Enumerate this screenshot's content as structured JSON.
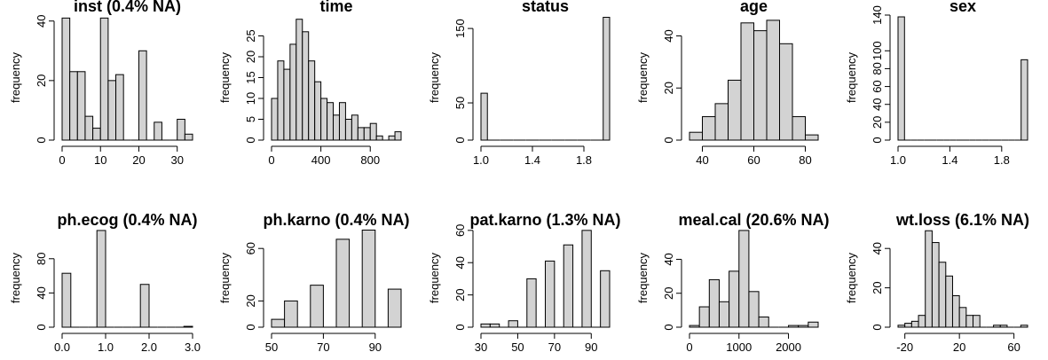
{
  "chart_data": [
    {
      "type": "bar",
      "title": "inst (0.4% NA)",
      "ylabel": "frequency",
      "bins": [
        0,
        2,
        4,
        6,
        8,
        10,
        12,
        14,
        16,
        18,
        20,
        22,
        24,
        26,
        28,
        30,
        32,
        34
      ],
      "counts": [
        41,
        23,
        23,
        8,
        4,
        41,
        20,
        22,
        0,
        0,
        30,
        0,
        6,
        0,
        0,
        7,
        2
      ],
      "xlim": [
        0,
        34
      ],
      "ylim": [
        0,
        42
      ],
      "xticks": [
        0,
        10,
        20,
        30
      ],
      "yticks": [
        0,
        20,
        40
      ]
    },
    {
      "type": "bar",
      "title": "time",
      "ylabel": "frequency",
      "bins": [
        0,
        50,
        100,
        150,
        200,
        250,
        300,
        350,
        400,
        450,
        500,
        550,
        600,
        650,
        700,
        750,
        800,
        850,
        900,
        950,
        1000,
        1050
      ],
      "counts": [
        10,
        19,
        17,
        23,
        29,
        26,
        19,
        14,
        10,
        9,
        6,
        9,
        5,
        6,
        3,
        3,
        4,
        1,
        0,
        1,
        2
      ],
      "xlim": [
        0,
        1050
      ],
      "ylim": [
        0,
        30
      ],
      "xticks": [
        0,
        400,
        800
      ],
      "yticks": [
        0,
        5,
        10,
        15,
        20,
        25
      ]
    },
    {
      "type": "bar",
      "title": "status",
      "ylabel": "frequency",
      "bins": [
        1,
        1.05,
        1.1,
        1.15,
        1.2,
        1.25,
        1.3,
        1.35,
        1.4,
        1.45,
        1.5,
        1.55,
        1.6,
        1.65,
        1.7,
        1.75,
        1.8,
        1.85,
        1.9,
        1.95,
        2
      ],
      "counts": [
        63,
        0,
        0,
        0,
        0,
        0,
        0,
        0,
        0,
        0,
        0,
        0,
        0,
        0,
        0,
        0,
        0,
        0,
        0,
        165
      ],
      "xlim": [
        1,
        2
      ],
      "ylim": [
        0,
        168
      ],
      "xticks": [
        1.0,
        1.4,
        1.8
      ],
      "yticks": [
        0,
        50,
        150
      ]
    },
    {
      "type": "bar",
      "title": "age",
      "ylabel": "frequency",
      "bins": [
        35,
        40,
        45,
        50,
        55,
        60,
        65,
        70,
        75,
        80,
        85
      ],
      "counts": [
        3,
        9,
        14,
        23,
        45,
        42,
        46,
        37,
        9,
        2
      ],
      "xlim": [
        35,
        85
      ],
      "ylim": [
        0,
        48
      ],
      "xticks": [
        40,
        60,
        80
      ],
      "yticks": [
        0,
        20,
        40
      ]
    },
    {
      "type": "bar",
      "title": "sex",
      "ylabel": "frequency",
      "bins": [
        1,
        1.05,
        1.1,
        1.15,
        1.2,
        1.25,
        1.3,
        1.35,
        1.4,
        1.45,
        1.5,
        1.55,
        1.6,
        1.65,
        1.7,
        1.75,
        1.8,
        1.85,
        1.9,
        1.95,
        2
      ],
      "counts": [
        138,
        0,
        0,
        0,
        0,
        0,
        0,
        0,
        0,
        0,
        0,
        0,
        0,
        0,
        0,
        0,
        0,
        0,
        0,
        90
      ],
      "xlim": [
        1,
        2
      ],
      "ylim": [
        0,
        140
      ],
      "xticks": [
        1.0,
        1.4,
        1.8
      ],
      "yticks": [
        0,
        20,
        40,
        60,
        80,
        100,
        140
      ]
    },
    {
      "type": "bar",
      "title": "ph.ecog (0.4% NA)",
      "ylabel": "frequency",
      "bins": [
        0,
        0.2,
        0.4,
        0.6,
        0.8,
        1.0,
        1.2,
        1.4,
        1.6,
        1.8,
        2.0,
        2.2,
        2.4,
        2.6,
        2.8,
        3.0
      ],
      "counts": [
        63,
        0,
        0,
        0,
        113,
        0,
        0,
        0,
        0,
        50,
        0,
        0,
        0,
        0,
        1
      ],
      "xlim": [
        0,
        3
      ],
      "ylim": [
        0,
        115
      ],
      "xticks": [
        0.0,
        1.0,
        2.0,
        3.0
      ],
      "yticks": [
        0,
        40,
        80
      ]
    },
    {
      "type": "bar",
      "title": "ph.karno (0.4% NA)",
      "ylabel": "frequency",
      "bins": [
        50,
        55,
        60,
        65,
        70,
        75,
        80,
        85,
        90,
        95,
        100
      ],
      "counts": [
        6,
        20,
        0,
        32,
        0,
        67,
        0,
        74,
        0,
        29
      ],
      "xlim": [
        50,
        100
      ],
      "ylim": [
        0,
        75
      ],
      "xticks": [
        50,
        70,
        90
      ],
      "yticks": [
        0,
        20,
        60
      ]
    },
    {
      "type": "bar",
      "title": "pat.karno (1.3% NA)",
      "ylabel": "frequency",
      "bins": [
        30,
        35,
        40,
        45,
        50,
        55,
        60,
        65,
        70,
        75,
        80,
        85,
        90,
        95,
        100
      ],
      "counts": [
        2,
        2,
        0,
        4,
        0,
        30,
        0,
        41,
        0,
        51,
        0,
        60,
        0,
        35
      ],
      "xlim": [
        30,
        100
      ],
      "ylim": [
        0,
        61
      ],
      "xticks": [
        30,
        50,
        70,
        90
      ],
      "yticks": [
        0,
        20,
        40,
        60
      ]
    },
    {
      "type": "bar",
      "title": "meal.cal (20.6% NA)",
      "ylabel": "frequency",
      "bins": [
        0,
        200,
        400,
        600,
        800,
        1000,
        1200,
        1400,
        1600,
        1800,
        2000,
        2200,
        2400,
        2600
      ],
      "counts": [
        1,
        12,
        28,
        15,
        33,
        57,
        21,
        6,
        0,
        0,
        1,
        1,
        3
      ],
      "xlim": [
        0,
        2600
      ],
      "ylim": [
        0,
        58
      ],
      "xticks": [
        0,
        1000,
        2000
      ],
      "yticks": [
        0,
        20,
        40
      ]
    },
    {
      "type": "bar",
      "title": "wt.loss (6.1% NA)",
      "ylabel": "frequency",
      "bins": [
        -25,
        -20,
        -15,
        -10,
        -5,
        0,
        5,
        10,
        15,
        20,
        25,
        30,
        35,
        40,
        45,
        50,
        55,
        60,
        65,
        70
      ],
      "counts": [
        1,
        2,
        3,
        6,
        49,
        43,
        33,
        26,
        16,
        10,
        6,
        6,
        0,
        0,
        1,
        1,
        0,
        0,
        1
      ],
      "xlim": [
        -25,
        70
      ],
      "ylim": [
        0,
        50
      ],
      "xticks": [
        -20,
        20,
        60
      ],
      "yticks": [
        0,
        20,
        40
      ]
    }
  ]
}
